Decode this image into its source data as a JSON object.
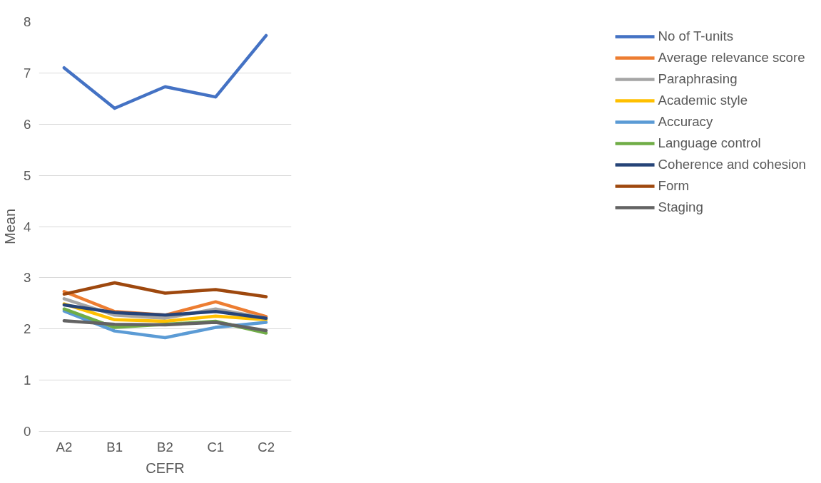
{
  "chart_data": {
    "type": "line",
    "xlabel": "CEFR",
    "ylabel": "Mean",
    "categories": [
      "A2",
      "B1",
      "B2",
      "C1",
      "C2"
    ],
    "ylim": [
      0,
      8
    ],
    "yticks": [
      0,
      1,
      2,
      3,
      4,
      5,
      6,
      7,
      8
    ],
    "grid": "y",
    "legend": "right",
    "marker": "none",
    "line_style": "solid",
    "series": [
      {
        "name": "No of T-units",
        "color": "#4472c4",
        "values": [
          7.1,
          6.31,
          6.73,
          6.53,
          7.73
        ]
      },
      {
        "name": "Average relevance score",
        "color": "#ed7d31",
        "values": [
          2.73,
          2.34,
          2.27,
          2.53,
          2.24
        ]
      },
      {
        "name": "Paraphrasing",
        "color": "#a5a5a5",
        "values": [
          2.59,
          2.27,
          2.21,
          2.39,
          2.21
        ]
      },
      {
        "name": "Academic style",
        "color": "#ffc000",
        "values": [
          2.49,
          2.18,
          2.15,
          2.25,
          2.18
        ]
      },
      {
        "name": "Accuracy",
        "color": "#5b9bd5",
        "values": [
          2.35,
          1.96,
          1.83,
          2.03,
          2.13
        ]
      },
      {
        "name": "Language control",
        "color": "#70ad47",
        "values": [
          2.39,
          2.03,
          2.09,
          2.15,
          1.92
        ]
      },
      {
        "name": "Coherence and cohesion",
        "color": "#264478",
        "values": [
          2.47,
          2.32,
          2.27,
          2.34,
          2.21
        ]
      },
      {
        "name": "Form",
        "color": "#9e480e",
        "values": [
          2.68,
          2.9,
          2.7,
          2.77,
          2.63
        ]
      },
      {
        "name": "Staging",
        "color": "#636363",
        "values": [
          2.16,
          2.09,
          2.08,
          2.13,
          1.97
        ]
      }
    ]
  }
}
